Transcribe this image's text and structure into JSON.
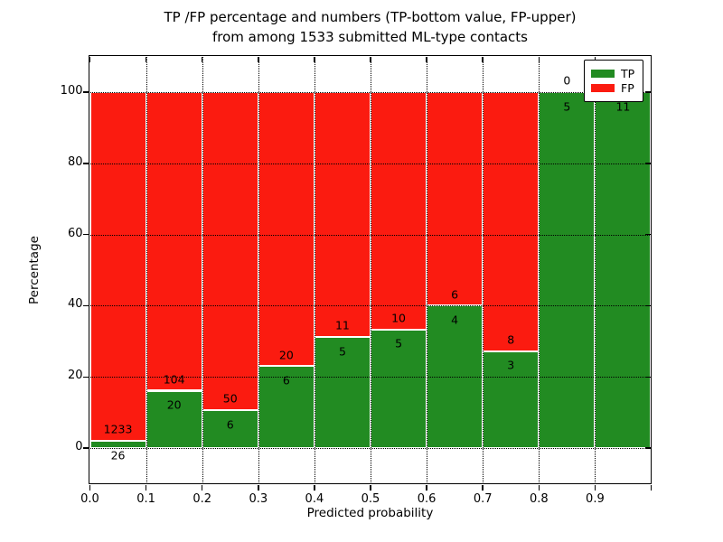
{
  "chart_data": {
    "type": "bar",
    "stacked": true,
    "title_line1": "TP /FP percentage and numbers (TP-bottom value, FP-upper)",
    "title_line2": "from among 1533 submitted ML-type contacts",
    "xlabel": "Predicted probability",
    "ylabel": "Percentage",
    "total_submitted": 1533,
    "x_bin_edges": [
      0.0,
      0.1,
      0.2,
      0.3,
      0.4,
      0.5,
      0.6,
      0.7,
      0.8,
      0.9,
      1.0
    ],
    "x_tick_labels": [
      "0.0",
      "0.1",
      "0.2",
      "0.3",
      "0.4",
      "0.5",
      "0.6",
      "0.7",
      "0.8",
      "0.9"
    ],
    "y_ticks": [
      0,
      20,
      40,
      60,
      80,
      100
    ],
    "y_tick_labels": [
      "0",
      "20",
      "40",
      "60",
      "80",
      "100"
    ],
    "xlim": [
      0.0,
      1.0
    ],
    "ylim": [
      -10,
      110
    ],
    "grid": "dotted",
    "legend_position": "upper right",
    "series": [
      {
        "name": "TP",
        "color": "#228b22",
        "counts": [
          26,
          20,
          6,
          6,
          5,
          5,
          4,
          3,
          5,
          11
        ]
      },
      {
        "name": "FP",
        "color": "#fb1b10",
        "counts": [
          1233,
          104,
          50,
          20,
          11,
          10,
          6,
          8,
          0,
          0
        ]
      }
    ],
    "tp_percent": [
      2.07,
      16.13,
      10.71,
      23.08,
      31.25,
      33.33,
      40.0,
      27.27,
      100.0,
      100.0
    ]
  }
}
